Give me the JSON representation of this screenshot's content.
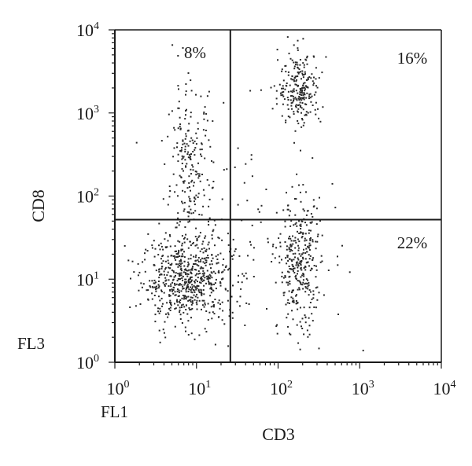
{
  "chart_data": {
    "type": "scatter",
    "title": "",
    "xlabel": "CD3",
    "ylabel": "CD8",
    "x_channel_label": "FL1",
    "y_channel_label": "FL3",
    "xscale": "log",
    "yscale": "log",
    "xlim": [
      1,
      10000
    ],
    "ylim": [
      1,
      10000
    ],
    "x_ticks": [
      {
        "base": "10",
        "exp": "0"
      },
      {
        "base": "10",
        "exp": "1"
      },
      {
        "base": "10",
        "exp": "2"
      },
      {
        "base": "10",
        "exp": "3"
      },
      {
        "base": "10",
        "exp": "4"
      }
    ],
    "y_ticks": [
      {
        "base": "10",
        "exp": "0"
      },
      {
        "base": "10",
        "exp": "1"
      },
      {
        "base": "10",
        "exp": "2"
      },
      {
        "base": "10",
        "exp": "3"
      },
      {
        "base": "10",
        "exp": "4"
      }
    ],
    "grid": false,
    "quadrant_gates": {
      "x": 26,
      "y": 52
    },
    "quadrant_labels": {
      "upper_left": "8%",
      "upper_right": "16%",
      "lower_right": "22%"
    },
    "populations": [
      {
        "cx": 7.5,
        "cy": 10,
        "spread_x": 0.28,
        "spread_y": 0.25,
        "count": 620
      },
      {
        "cx": 8,
        "cy": 180,
        "spread_x": 0.14,
        "spread_y": 0.55,
        "count": 230
      },
      {
        "cx": 180,
        "cy": 2000,
        "spread_x": 0.13,
        "spread_y": 0.22,
        "count": 240
      },
      {
        "cx": 180,
        "cy": 14,
        "spread_x": 0.13,
        "spread_y": 0.4,
        "count": 330
      },
      {
        "cx": 40,
        "cy": 40,
        "spread_x": 0.6,
        "spread_y": 0.7,
        "count": 90
      }
    ],
    "point_color": "#2a2a2a",
    "axis_color": "#1a1a1a"
  }
}
